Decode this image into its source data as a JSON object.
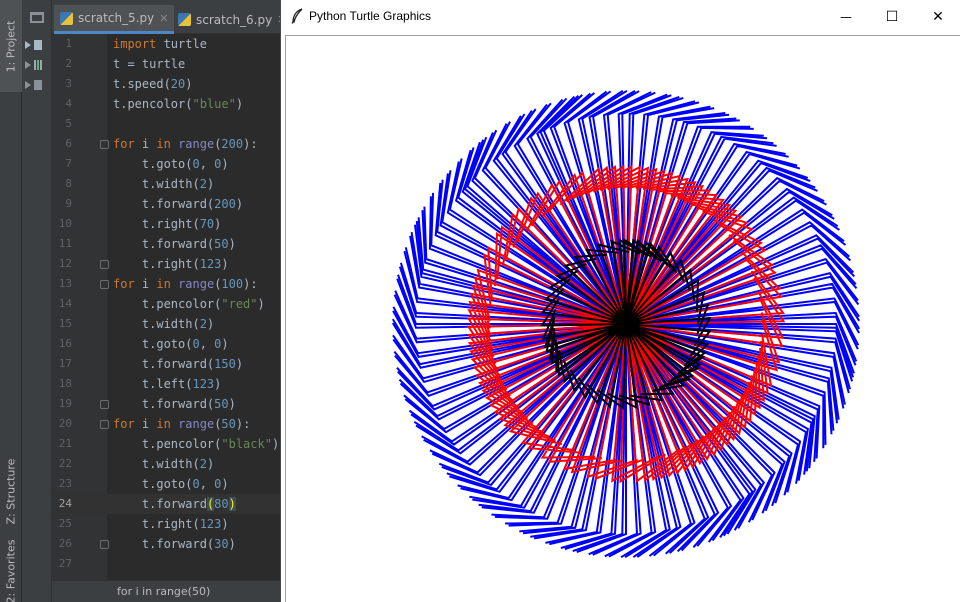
{
  "ide": {
    "tool_tabs": {
      "project": "1: Project",
      "structure": "Z: Structure",
      "favorites": "2: Favorites"
    },
    "tabs": [
      {
        "label": "scratch_5.py",
        "active": true,
        "icon": "python-file-icon"
      },
      {
        "label": "scratch_6.py",
        "active": false,
        "icon": "python-file-icon"
      }
    ],
    "line_numbers": [
      "1",
      "2",
      "3",
      "4",
      "5",
      "6",
      "7",
      "8",
      "9",
      "10",
      "11",
      "12",
      "13",
      "14",
      "15",
      "16",
      "17",
      "18",
      "19",
      "20",
      "21",
      "22",
      "23",
      "24",
      "25",
      "26",
      "27"
    ],
    "current_line": "24",
    "breadcrumb": "for i in range(50)"
  },
  "turtle_window": {
    "title": "Python Turtle Graphics",
    "minimize": "—",
    "maximize": "☐",
    "close": "✕",
    "drawing": {
      "loops": [
        {
          "color": "#0000ff",
          "iterations": 200,
          "forward1": 200,
          "right1": 70,
          "forward2": 50,
          "turn2": 123,
          "turn2_dir": "right"
        },
        {
          "color": "#ff0000",
          "iterations": 100,
          "forward1": 150,
          "right1": -123,
          "forward2": 50,
          "turn2": 0,
          "turn2_dir": "none"
        },
        {
          "color": "#000000",
          "iterations": 50,
          "forward1": 80,
          "right1": 123,
          "forward2": 30,
          "turn2": 0,
          "turn2_dir": "none"
        }
      ]
    }
  },
  "colors": {
    "ide_bg": "#2b2b2b",
    "keyword": "#cc7832",
    "number": "#6897bb",
    "string": "#6a8759",
    "builtin": "#8888c6",
    "text": "#a9b7c6"
  }
}
